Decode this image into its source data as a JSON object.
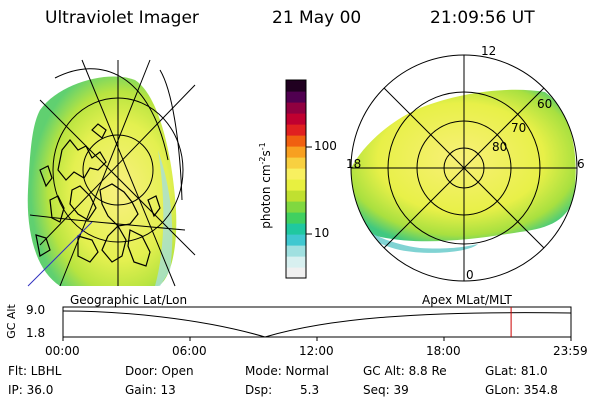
{
  "header": {
    "instrument": "Ultraviolet Imager",
    "date": "21 May 00",
    "time": "21:09:56 UT"
  },
  "colorbar": {
    "unit_prefix": "photon cm",
    "exp1": "-2",
    "mid": "s",
    "exp2": "-1",
    "ticks": [
      "100",
      "10"
    ],
    "colors": [
      "#f0f0f0",
      "#d8f0f0",
      "#a0e0e0",
      "#40c8d0",
      "#20c8a0",
      "#40d060",
      "#80d840",
      "#c0e030",
      "#e8f040",
      "#f8f060",
      "#f8d040",
      "#f8a020",
      "#f06010",
      "#e02020",
      "#c00030",
      "#900040",
      "#500050",
      "#200020"
    ]
  },
  "left_map": {
    "projection": "Geographic Lat/Lon",
    "palette": {
      "land": "#000000",
      "aurora_outer": "#7ed868",
      "aurora_mid": "#d8ee48",
      "aurora_core": "#f8f080"
    }
  },
  "right_map": {
    "projection": "Apex MLat/MLT",
    "mlt_labels": {
      "top": "12",
      "left": "18",
      "right": "6",
      "bottom": "0"
    },
    "lat_labels": [
      "60",
      "70",
      "80"
    ]
  },
  "timeline": {
    "ylabel": "GC Alt",
    "ymax": "9.0",
    "ymin": "1.8",
    "ticks": [
      "00:00",
      "06:00",
      "12:00",
      "18:00",
      "23:59"
    ],
    "marker_color": "#cc0000",
    "marker_time_hours": 21.17
  },
  "info": {
    "row1": {
      "flt": "Flt: LBHL",
      "door": "Door: Open",
      "mode": "Mode: Normal",
      "gcalt": "GC Alt: 8.8 Re",
      "glat": "GLat: 81.0"
    },
    "row2": {
      "ip": "IP: 36.0",
      "gain": "Gain: 13",
      "dsp_label": "Dsp:",
      "dsp_value": "5.3",
      "seq": "Seq: 39",
      "glon": "GLon: 354.8"
    }
  }
}
